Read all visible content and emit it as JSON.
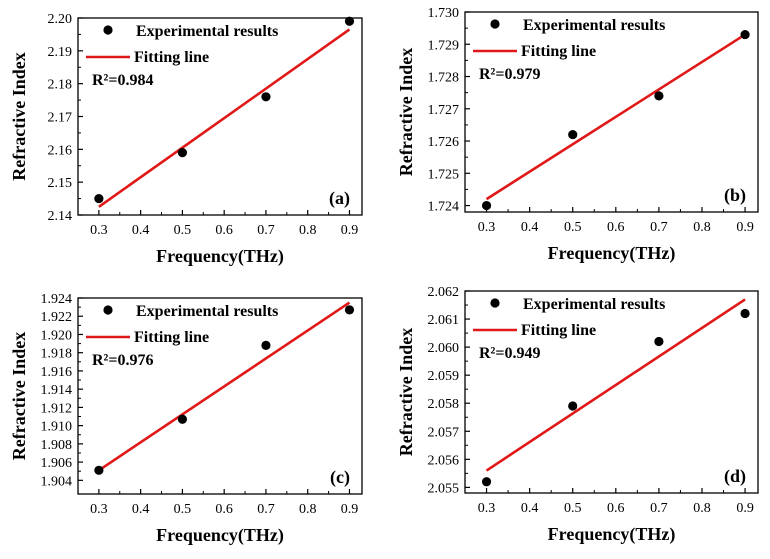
{
  "legend": {
    "experimental": "Experimental results",
    "fitting": "Fitting line"
  },
  "colors": {
    "fit_line": "#e01818",
    "points": "#000000",
    "axes": "#000000",
    "background": "#ffffff"
  },
  "chart_data": [
    {
      "type": "scatter",
      "panel": "(a)",
      "xlabel": "Frequency(THz)",
      "ylabel": "Refractive Index",
      "r2": "R²=0.984",
      "xlim": [
        0.25,
        0.93
      ],
      "ylim": [
        2.14,
        2.2
      ],
      "xticks": [
        "0.3",
        "0.4",
        "0.5",
        "0.6",
        "0.7",
        "0.8",
        "0.9"
      ],
      "yticks": [
        "2.14",
        "2.15",
        "2.16",
        "2.17",
        "2.18",
        "2.19",
        "2.20"
      ],
      "points": {
        "x": [
          0.3,
          0.5,
          0.7,
          0.9
        ],
        "y": [
          2.145,
          2.159,
          2.176,
          2.199
        ]
      },
      "fit": {
        "x": [
          0.3,
          0.9
        ],
        "y": [
          2.1425,
          2.1965
        ]
      }
    },
    {
      "type": "scatter",
      "panel": "(b)",
      "xlabel": "Frequency(THz)",
      "ylabel": "Refractive Index",
      "r2": "R²=0.979",
      "xlim": [
        0.25,
        0.93
      ],
      "ylim": [
        1.7238,
        1.73
      ],
      "xticks": [
        "0.3",
        "0.4",
        "0.5",
        "0.6",
        "0.7",
        "0.8",
        "0.9"
      ],
      "yticks": [
        "1.724",
        "1.725",
        "1.726",
        "1.727",
        "1.728",
        "1.729",
        "1.730"
      ],
      "points": {
        "x": [
          0.3,
          0.5,
          0.7,
          0.9
        ],
        "y": [
          1.724,
          1.7262,
          1.7274,
          1.7293
        ]
      },
      "fit": {
        "x": [
          0.3,
          0.9
        ],
        "y": [
          1.7242,
          1.7293
        ]
      }
    },
    {
      "type": "scatter",
      "panel": "(c)",
      "xlabel": "Frequency(THz)",
      "ylabel": "Refractive Index",
      "r2": "R²=0.976",
      "xlim": [
        0.25,
        0.93
      ],
      "ylim": [
        1.9025,
        1.924
      ],
      "xticks": [
        "0.3",
        "0.4",
        "0.5",
        "0.6",
        "0.7",
        "0.8",
        "0.9"
      ],
      "yticks": [
        "1.904",
        "1.906",
        "1.908",
        "1.910",
        "1.912",
        "1.914",
        "1.916",
        "1.918",
        "1.920",
        "1.922",
        "1.924"
      ],
      "points": {
        "x": [
          0.3,
          0.5,
          0.7,
          0.9
        ],
        "y": [
          1.9051,
          1.9107,
          1.9188,
          1.9227
        ]
      },
      "fit": {
        "x": [
          0.3,
          0.9
        ],
        "y": [
          1.9051,
          1.9235
        ]
      }
    },
    {
      "type": "scatter",
      "panel": "(d)",
      "xlabel": "Frequency(THz)",
      "ylabel": "Refractive Index",
      "r2": "R²=0.949",
      "xlim": [
        0.25,
        0.93
      ],
      "ylim": [
        2.0548,
        2.062
      ],
      "xticks": [
        "0.3",
        "0.4",
        "0.5",
        "0.6",
        "0.7",
        "0.8",
        "0.9"
      ],
      "yticks": [
        "2.055",
        "2.056",
        "2.057",
        "2.058",
        "2.059",
        "2.060",
        "2.061",
        "2.062"
      ],
      "points": {
        "x": [
          0.3,
          0.5,
          0.7,
          0.9
        ],
        "y": [
          2.0552,
          2.0579,
          2.0602,
          2.0612
        ]
      },
      "fit": {
        "x": [
          0.3,
          0.9
        ],
        "y": [
          2.0556,
          2.0617
        ]
      }
    }
  ]
}
